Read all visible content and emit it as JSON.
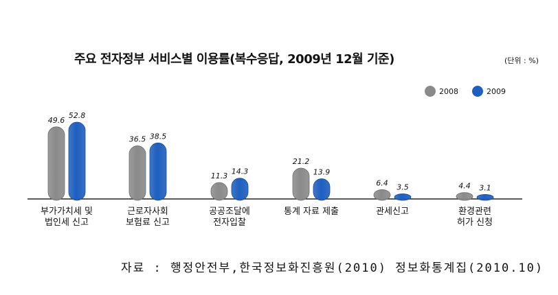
{
  "title": "주요 전자정부 서비스별 이용률(복수응답, 2009년 12월 기준)",
  "unit_label": "(단위 : %)",
  "source": "자료 : 행정안전부,한국정보화진흥원(2010) 정보화통계집(2010.10)",
  "colors": {
    "s2008": "#8a8a8a",
    "s2009": "#1f5fbf"
  },
  "chart_data": {
    "type": "bar",
    "categories": [
      [
        "부가가치세 및",
        "법인세 신고"
      ],
      [
        "근로자사회",
        "보험료 신고"
      ],
      [
        "공공조달에",
        "전자입찰"
      ],
      [
        "통계 자료 제출"
      ],
      [
        "관세신고"
      ],
      [
        "환경관련",
        "허가 신청"
      ]
    ],
    "series": [
      {
        "name": "2008",
        "values": [
          49.6,
          36.5,
          11.3,
          21.2,
          6.4,
          4.4
        ],
        "labels": [
          "49.6",
          "36.5",
          "11.3",
          "21.2",
          "6.4",
          "4.4"
        ]
      },
      {
        "name": "2009",
        "values": [
          52.8,
          38.5,
          14.3,
          13.9,
          3.5,
          3.1
        ],
        "labels": [
          "52.8",
          "38.5",
          "14.3",
          "13.9",
          "3.5",
          "3.1"
        ]
      }
    ],
    "xlabel": "",
    "ylabel": "",
    "ylim": [
      0,
      60
    ],
    "grid": false,
    "legend": "top-right"
  }
}
